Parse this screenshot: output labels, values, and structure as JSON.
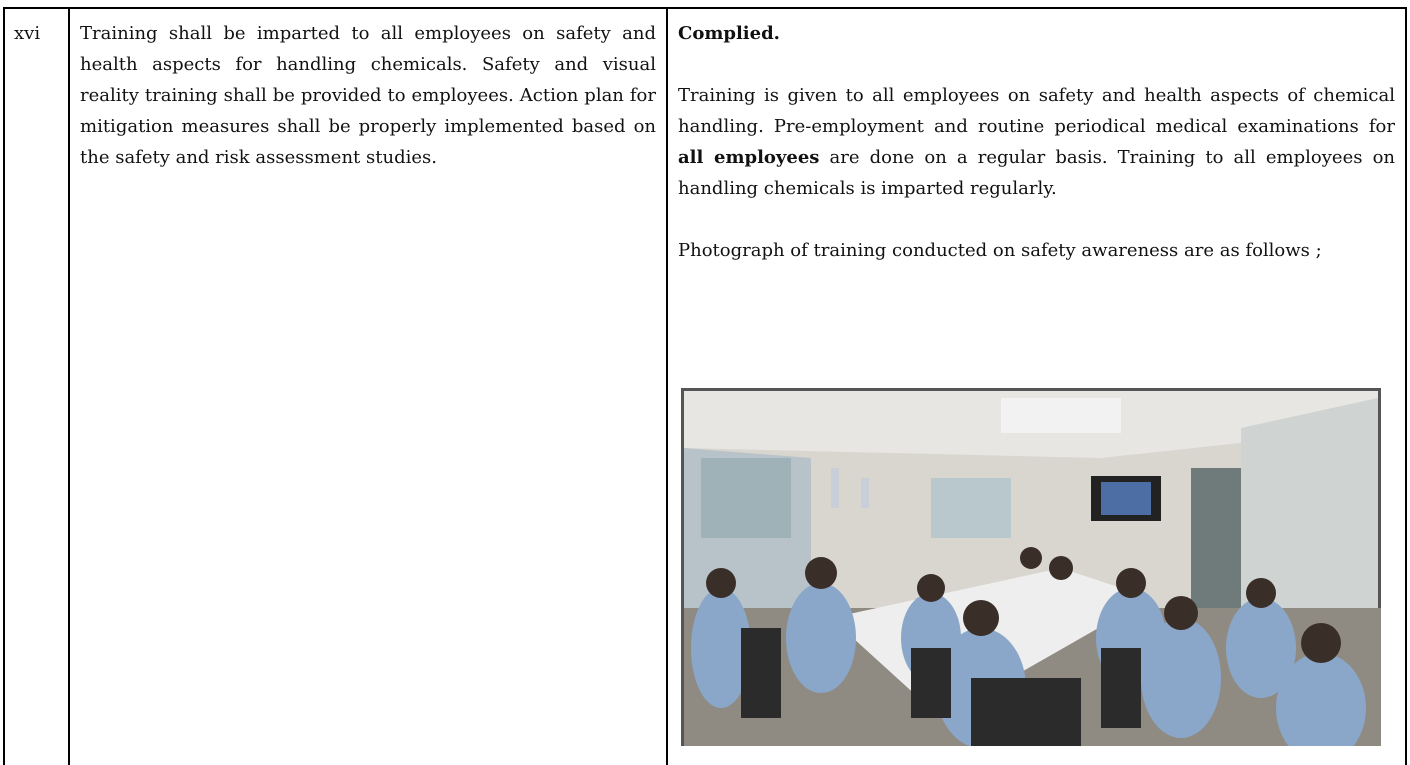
{
  "table": {
    "rows": [
      {
        "number": "xvi",
        "condition": "Training shall be imparted to all employees on safety and health aspects for handling chemicals. Safety and visual reality training shall be provided to employees. Action plan for mitigation measures shall be properly implemented based on the safety and risk assessment studies.",
        "status": "Complied.",
        "compliance_before": "Training is given to all employees on safety and health aspects of chemical handling. Pre-employment and routine periodical medical examinations for ",
        "compliance_bold": "all employees",
        "compliance_after": " are done on a regular basis. Training to all employees on handling chemicals is imparted regularly.",
        "photo_caption": "Photograph of training conducted on safety awareness are as follows ;"
      }
    ]
  }
}
